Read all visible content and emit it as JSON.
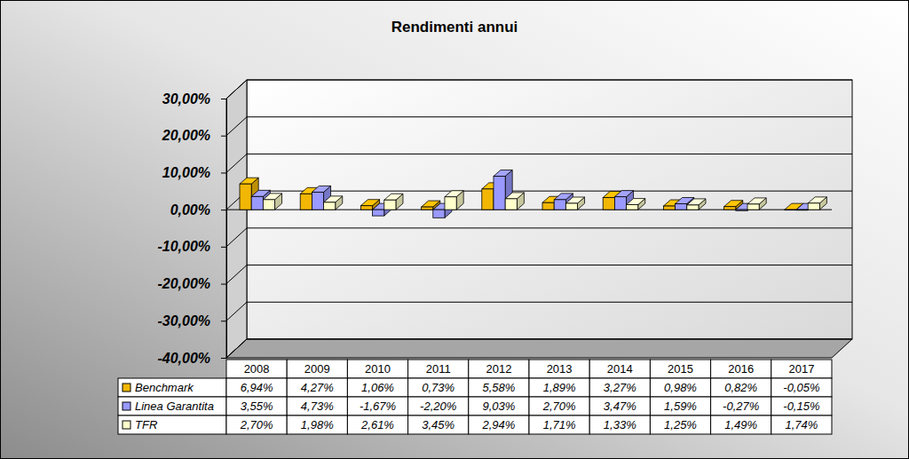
{
  "chart_data": {
    "type": "bar",
    "title": "Rendimenti annui",
    "categories": [
      "2008",
      "2009",
      "2010",
      "2011",
      "2012",
      "2013",
      "2014",
      "2015",
      "2016",
      "2017"
    ],
    "series": [
      {
        "name": "Benchmark",
        "color": "#f2b705",
        "values": [
          6.94,
          4.27,
          1.06,
          0.73,
          5.58,
          1.89,
          3.27,
          0.98,
          0.82,
          -0.05
        ],
        "value_labels": [
          "6,94%",
          "4,27%",
          "1,06%",
          "0,73%",
          "5,58%",
          "1,89%",
          "3,27%",
          "0,98%",
          "0,82%",
          "-0,05%"
        ]
      },
      {
        "name": "Linea Garantita",
        "color": "#9999ff",
        "values": [
          3.55,
          4.73,
          -1.67,
          -2.2,
          9.03,
          2.7,
          3.47,
          1.59,
          -0.27,
          -0.15
        ],
        "value_labels": [
          "3,55%",
          "4,73%",
          "-1,67%",
          "-2,20%",
          "9,03%",
          "2,70%",
          "3,47%",
          "1,59%",
          "-0,27%",
          "-0,15%"
        ]
      },
      {
        "name": "TFR",
        "color": "#ffffcc",
        "values": [
          2.7,
          1.98,
          2.61,
          3.45,
          2.94,
          1.71,
          1.33,
          1.25,
          1.49,
          1.74
        ],
        "value_labels": [
          "2,70%",
          "1,98%",
          "2,61%",
          "3,45%",
          "2,94%",
          "1,71%",
          "1,33%",
          "1,25%",
          "1,49%",
          "1,74%"
        ]
      }
    ],
    "ylim": [
      -40,
      30
    ],
    "yticks": [
      {
        "value": -40,
        "label": "-40,00%"
      },
      {
        "value": -30,
        "label": "-30,00%"
      },
      {
        "value": -20,
        "label": "-20,00%"
      },
      {
        "value": -10,
        "label": "-10,00%"
      },
      {
        "value": 0,
        "label": "0,00%"
      },
      {
        "value": 10,
        "label": "10,00%"
      },
      {
        "value": 20,
        "label": "20,00%"
      },
      {
        "value": 30,
        "label": "30,00%"
      }
    ],
    "grid": true,
    "legend": "bottom"
  }
}
